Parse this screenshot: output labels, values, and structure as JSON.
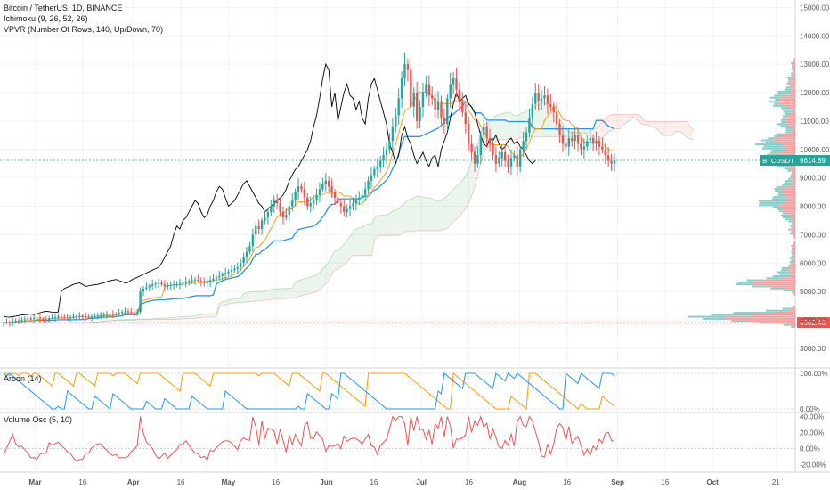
{
  "header": {
    "symbol": "Bitcoin / TetherUS, 1D, BINANCE",
    "indicators": [
      "Ichimoku (9, 26, 52, 26)",
      "VPVR (Number Of Rows, 140, Up/Down, 70)"
    ]
  },
  "colors": {
    "up": "#26a69a",
    "down": "#ef5350",
    "conversion": "#2196f3",
    "base_line": "#ff9800",
    "lagging": "#000000",
    "cloud_green": "#43a047",
    "cloud_red": "#ef5350",
    "grid": "#f0f3fa",
    "axis_text": "#555555",
    "aroon_up": "#ff9800",
    "aroon_down": "#2196f3",
    "vol_osc": "#ef5350"
  },
  "chart_data": [
    {
      "type": "candlestick",
      "title": "Bitcoin / TetherUS, 1D, BINANCE",
      "price_axis_ticks": [
        "15000.00",
        "14000.00",
        "13000.00",
        "12000.00",
        "11000.00",
        "10000.00",
        "9000.00",
        "8000.00",
        "7000.00",
        "6000.00",
        "5000.00",
        "4000.00",
        "3000.00"
      ],
      "ylim": [
        2400,
        15200
      ],
      "x_ticks": [
        "Mar",
        "16",
        "Apr",
        "16",
        "May",
        "16",
        "Jun",
        "16",
        "Jul",
        "16",
        "Aug",
        "16",
        "Sep",
        "16",
        "Oct",
        "21"
      ],
      "date_range": [
        "2019-02-19",
        "2019-08-31"
      ],
      "close_series": [
        3900,
        3920,
        3880,
        3950,
        3970,
        3960,
        3990,
        4020,
        4050,
        4030,
        4060,
        4080,
        4040,
        4010,
        4000,
        4050,
        4070,
        4090,
        4120,
        4100,
        4080,
        4060,
        4090,
        4110,
        4120,
        4140,
        4130,
        4100,
        4090,
        4110,
        4130,
        4150,
        4170,
        4180,
        4190,
        4200,
        4180,
        4220,
        4250,
        4280,
        4300,
        4290,
        4270,
        4260,
        4280,
        5000,
        5100,
        5150,
        5200,
        5250,
        5280,
        5300,
        5250,
        5180,
        5200,
        5220,
        5240,
        5250,
        5280,
        5300,
        5350,
        5380,
        5400,
        5420,
        5380,
        5350,
        5300,
        5320,
        5400,
        5450,
        5500,
        5550,
        5600,
        5650,
        5700,
        5750,
        5800,
        5850,
        6000,
        6200,
        6400,
        6600,
        7000,
        7300,
        7200,
        7500,
        7600,
        7800,
        8000,
        8200,
        8100,
        7800,
        7600,
        7700,
        8000,
        8200,
        8500,
        8700,
        8600,
        8300,
        8000,
        8100,
        8200,
        8400,
        8600,
        8800,
        8900,
        8700,
        8500,
        8300,
        8100,
        8000,
        7800,
        7900,
        8000,
        8100,
        8200,
        8300,
        8400,
        8600,
        8900,
        9100,
        9300,
        9400,
        9600,
        9800,
        10000,
        10300,
        10800,
        11200,
        11800,
        12500,
        13000,
        12800,
        11500,
        12000,
        11000,
        11500,
        12000,
        12300,
        11900,
        11800,
        11400,
        11700,
        11100,
        10900,
        11800,
        12300,
        12500,
        12100,
        11700,
        11300,
        10900,
        10200,
        9900,
        9500,
        9800,
        10500,
        10800,
        10400,
        10200,
        9800,
        9500,
        9700,
        9900,
        9600,
        9400,
        9700,
        9800,
        9400,
        10000,
        10300,
        10600,
        11100,
        11600,
        12000,
        11700,
        11800,
        11900,
        11600,
        11500,
        11300,
        10900,
        10500,
        10200,
        10100,
        10400,
        10300,
        10500,
        10200,
        10000,
        10100,
        10300,
        10400,
        10200,
        10300,
        10100,
        10000,
        9800,
        9600,
        9500,
        9615
      ],
      "last_price_label": "BTCUSDT",
      "last_price": "9614.69",
      "vpvr_poc_price": "3902.46"
    },
    {
      "type": "line",
      "title": "Aroon (14)",
      "price_axis_ticks": [
        "100.00%",
        "0.00%"
      ],
      "series": [
        {
          "name": "",
          "color_key": "aroon_up"
        },
        {
          "name": "",
          "color_key": "aroon_down"
        }
      ],
      "ylim": [
        0,
        100
      ]
    },
    {
      "type": "line",
      "title": "Volume Osc (5, 10)",
      "price_axis_ticks": [
        "40.00%",
        "20.00%",
        "0.00%",
        "-20.00%"
      ],
      "ylim": [
        -27,
        44
      ]
    }
  ]
}
